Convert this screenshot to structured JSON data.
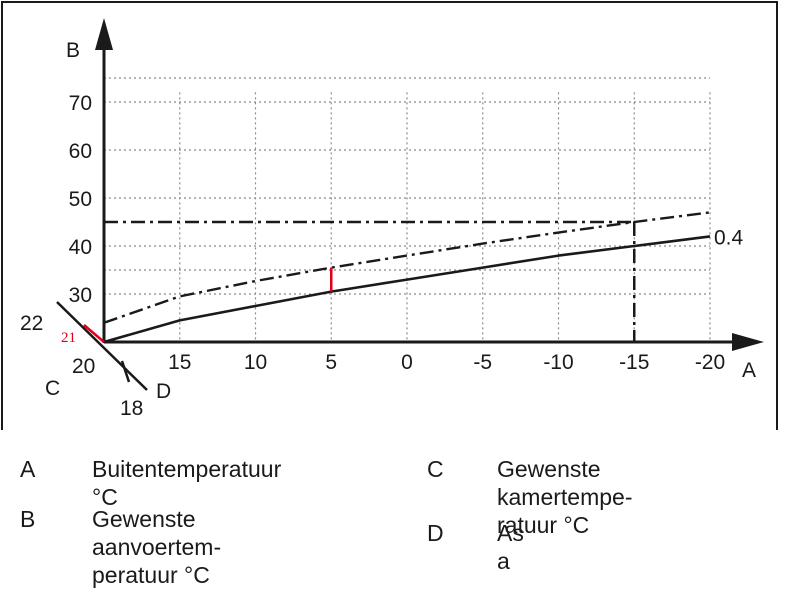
{
  "chart_data": {
    "type": "line",
    "xlabel": "A",
    "ylabel": "B",
    "x_ticks": [
      "15",
      "10",
      "5",
      "0",
      "-5",
      "-10",
      "-15",
      "-20"
    ],
    "x_tick_values": [
      15,
      10,
      5,
      0,
      -5,
      -10,
      -15,
      -20
    ],
    "y_ticks": [
      "30",
      "40",
      "50",
      "60",
      "70"
    ],
    "y_tick_values": [
      30,
      40,
      50,
      60,
      70
    ],
    "xlim": [
      20,
      -20
    ],
    "ylim": [
      20,
      75
    ],
    "x_reversed": true,
    "grid": true,
    "series": [
      {
        "name": "0.4",
        "style": "solid",
        "x": [
          20,
          15,
          10,
          5,
          0,
          -5,
          -10,
          -15,
          -20
        ],
        "values": [
          20,
          24.5,
          27.5,
          30.5,
          33,
          35.5,
          38,
          40,
          42
        ]
      },
      {
        "style": "dash-dot",
        "x": [
          20,
          15,
          10,
          5,
          0,
          -5,
          -10,
          -15,
          -20
        ],
        "values": [
          24,
          29.5,
          32.7,
          35.5,
          38,
          40.5,
          42.8,
          45,
          47
        ]
      }
    ],
    "reference_lines": {
      "horizontal_y": 45,
      "vertical_x": -15,
      "offset_at_x": 5
    },
    "axis_a": {
      "labels": [
        "22",
        "20",
        "18"
      ],
      "offset_marker": "21",
      "axis_letter_c": "C",
      "axis_letter_d": "D"
    }
  },
  "legend": [
    {
      "key": "A",
      "text": "Buitentemperatuur °C"
    },
    {
      "key": "B",
      "text": "Gewenste aanvoertem-\nperatuur °C"
    },
    {
      "key": "C",
      "text": "Gewenste kamertempe-\nratuur °C"
    },
    {
      "key": "D",
      "text": "As a"
    }
  ],
  "colors": {
    "ink": "#1a1a1a",
    "grid": "#8a8a8a",
    "accent": "#e0001b"
  }
}
